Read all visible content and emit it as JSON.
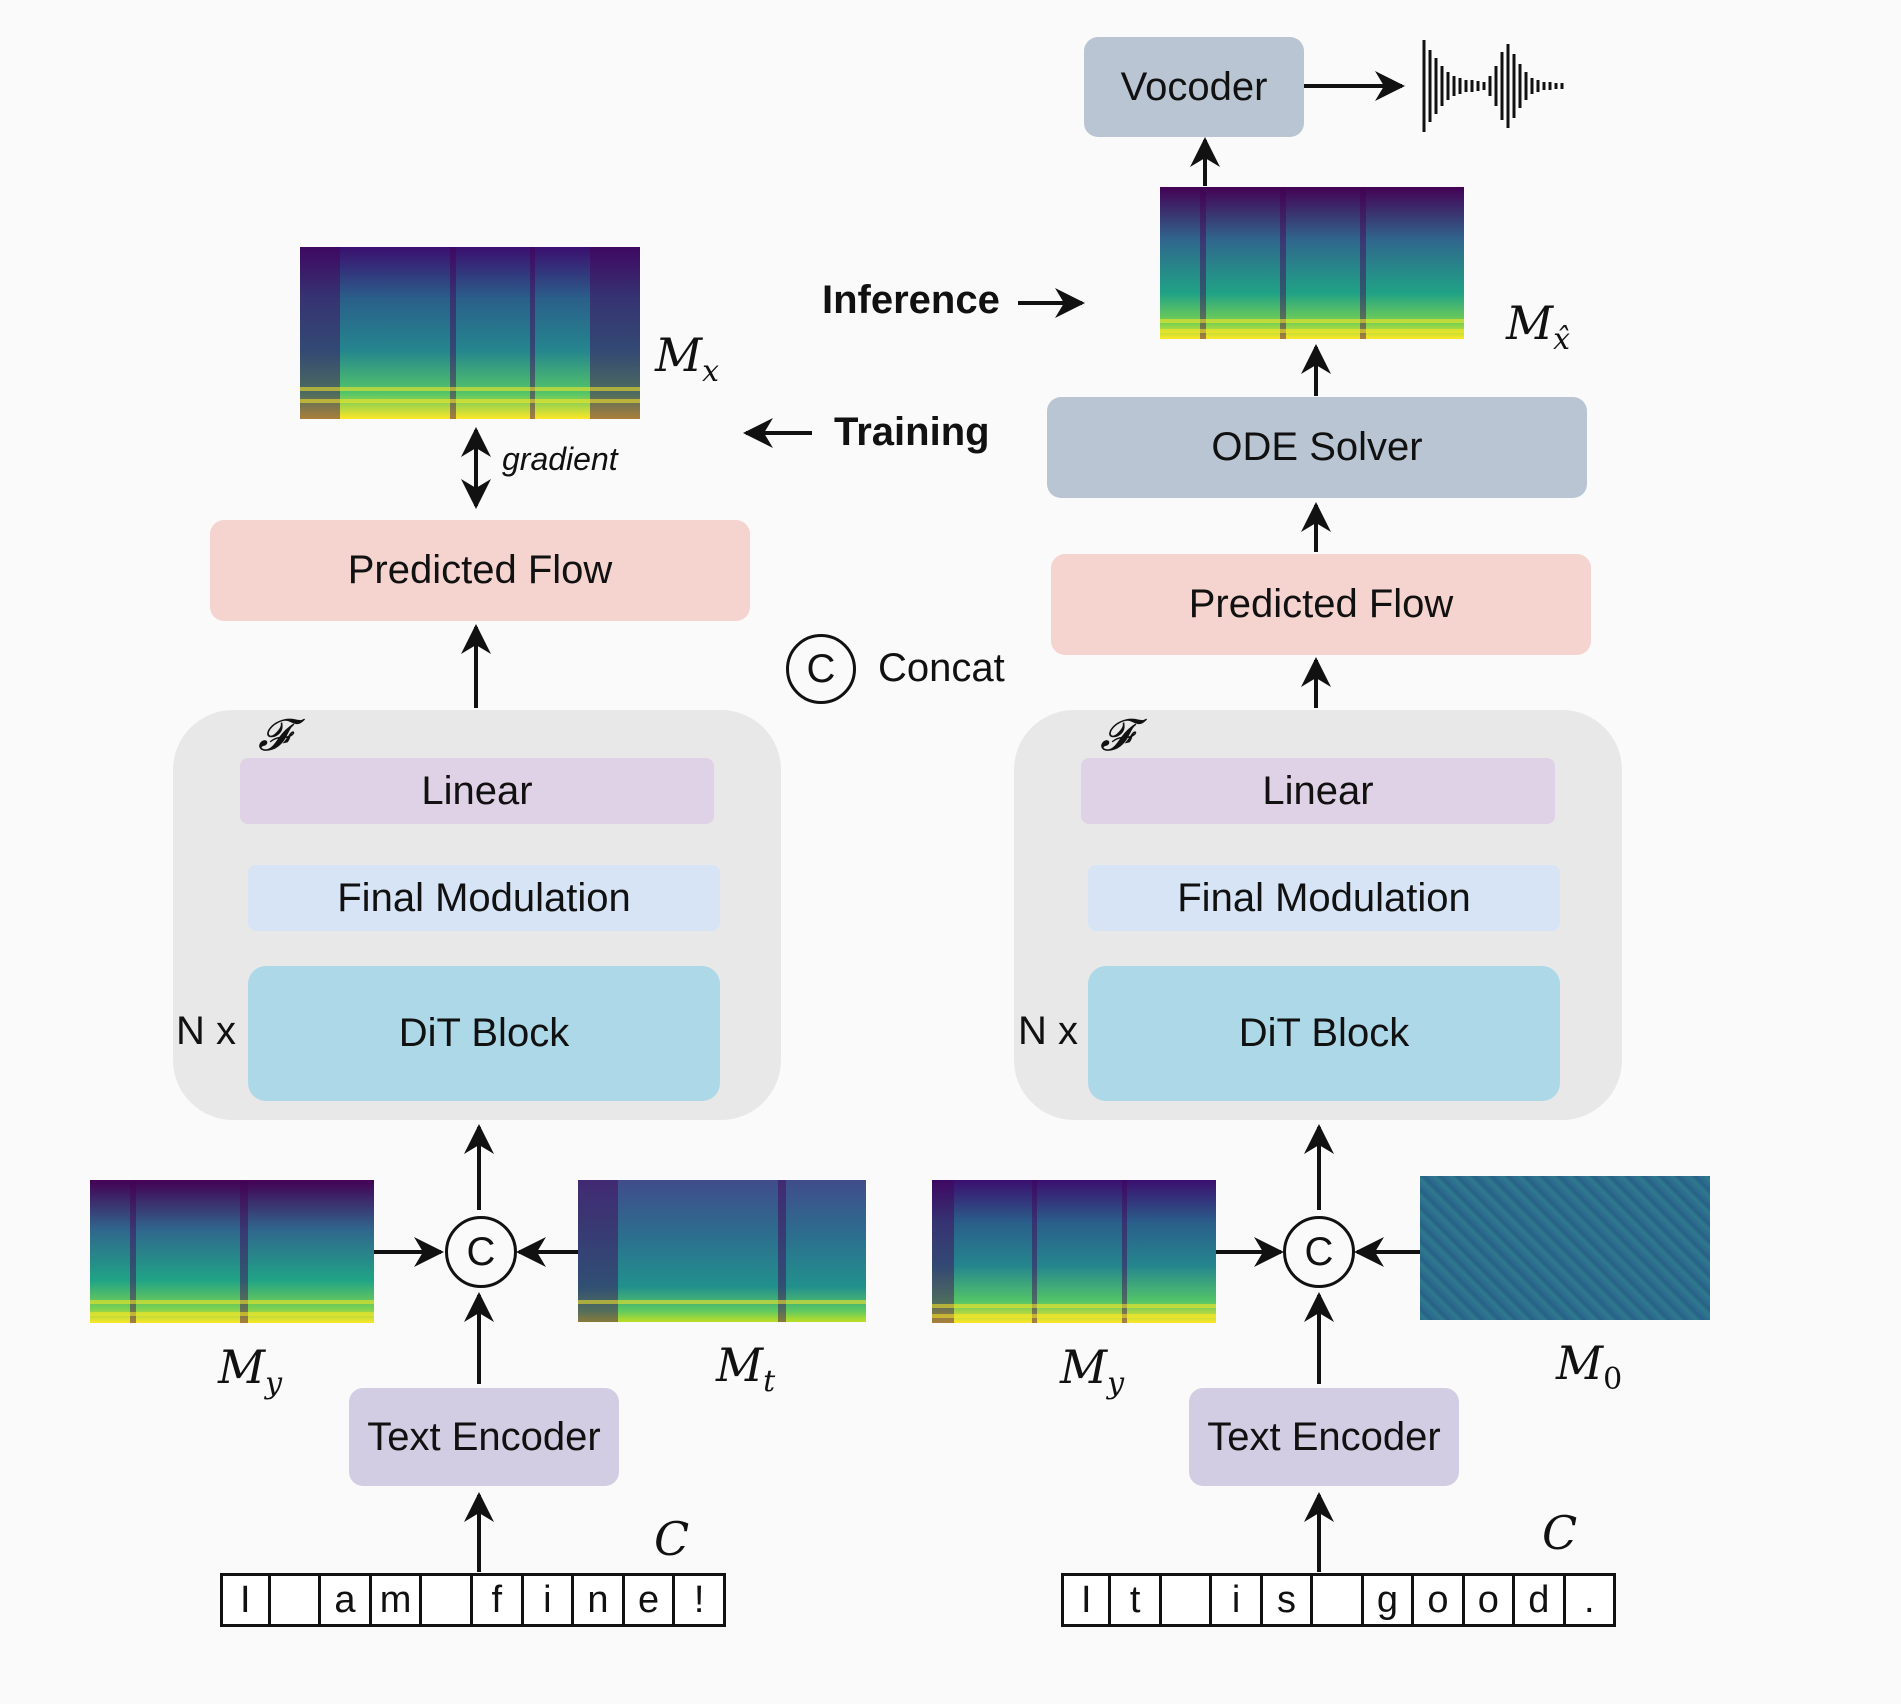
{
  "training": {
    "title": "Training",
    "output_mel": "M",
    "output_mel_sub": "x",
    "gradient_label": "gradient",
    "predicted_flow": "Predicted Flow",
    "f_label": "𝓕",
    "linear": "Linear",
    "final_modulation": "Final Modulation",
    "dit_block": "DiT Block",
    "repeat_label": "N x",
    "concat_symbol": "C",
    "text_encoder": "Text Encoder",
    "input_prompt_mel": "M",
    "input_prompt_mel_sub": "y",
    "input_target_mel": "M",
    "input_target_mel_sub": "t",
    "text_label": "C",
    "chars": [
      "I",
      "",
      "a",
      "m",
      "",
      "f",
      "i",
      "n",
      "e",
      "!"
    ]
  },
  "inference": {
    "title": "Inference",
    "vocoder": "Vocoder",
    "output_mel": "M",
    "output_mel_sub": "x̂",
    "ode_solver": "ODE Solver",
    "predicted_flow": "Predicted Flow",
    "f_label": "𝓕",
    "linear": "Linear",
    "final_modulation": "Final Modulation",
    "dit_block": "DiT Block",
    "repeat_label": "N x",
    "concat_symbol": "C",
    "text_encoder": "Text Encoder",
    "input_prompt_mel": "M",
    "input_prompt_mel_sub": "y",
    "input_noise_mel": "M",
    "input_noise_mel_sub": "0",
    "text_label": "C",
    "chars": [
      "I",
      "t",
      "",
      "i",
      "s",
      "",
      "g",
      "o",
      "o",
      "d",
      "."
    ]
  },
  "legend": {
    "concat_symbol": "C",
    "concat_text": "Concat"
  },
  "colors": {
    "linear": "#e0d2e6",
    "final_modulation": "#d6e4f5",
    "dit_block": "#acd8e8",
    "predicted_flow": "#f5d4d0",
    "ode_solver": "#b9c5d2",
    "text_encoder": "#d2cde2",
    "container": "#e8e8e8"
  }
}
